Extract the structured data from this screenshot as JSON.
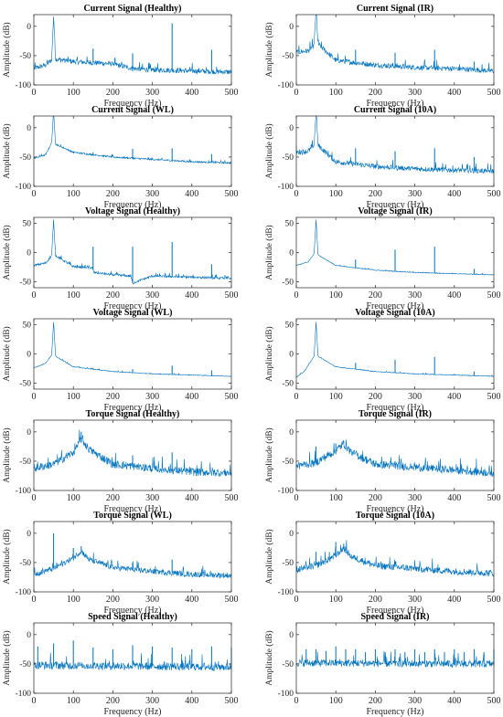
{
  "figure": {
    "line_color": "#0072BD",
    "xlabel": "Frequency (Hz)",
    "ylabel": "Amplitude (dB)"
  },
  "chart_data": [
    {
      "type": "line",
      "title": "Current Signal (Healthy)",
      "xlim": [
        0,
        500
      ],
      "ylim": [
        -100,
        20
      ],
      "xticks": [
        0,
        100,
        200,
        300,
        400,
        500
      ],
      "yticks": [
        -100,
        -50,
        0
      ],
      "baseline": [
        [
          0,
          -72
        ],
        [
          30,
          -66
        ],
        [
          45,
          -58
        ],
        [
          50,
          18
        ],
        [
          55,
          -56
        ],
        [
          100,
          -60
        ],
        [
          200,
          -64
        ],
        [
          250,
          -72
        ],
        [
          300,
          -74
        ],
        [
          400,
          -76
        ],
        [
          500,
          -78
        ]
      ],
      "peaks": [
        [
          50,
          18
        ],
        [
          150,
          -38
        ],
        [
          250,
          -46
        ],
        [
          350,
          5
        ],
        [
          450,
          -40
        ]
      ],
      "noise": 9
    },
    {
      "type": "line",
      "title": "Current Signal (IR)",
      "xlim": [
        0,
        500
      ],
      "ylim": [
        -100,
        20
      ],
      "xticks": [
        0,
        100,
        200,
        300,
        400,
        500
      ],
      "yticks": [
        -100,
        -50,
        0
      ],
      "baseline": [
        [
          0,
          -44
        ],
        [
          30,
          -42
        ],
        [
          45,
          -32
        ],
        [
          50,
          32
        ],
        [
          55,
          -30
        ],
        [
          100,
          -58
        ],
        [
          200,
          -66
        ],
        [
          300,
          -70
        ],
        [
          400,
          -72
        ],
        [
          500,
          -76
        ]
      ],
      "peaks": [
        [
          50,
          32
        ],
        [
          150,
          -40
        ],
        [
          250,
          -45
        ],
        [
          350,
          -40
        ],
        [
          450,
          -60
        ]
      ],
      "noise": 9
    },
    {
      "type": "line",
      "title": "Current Signal (WL)",
      "xlim": [
        0,
        500
      ],
      "ylim": [
        -100,
        20
      ],
      "xticks": [
        0,
        100,
        200,
        300,
        400,
        500
      ],
      "yticks": [
        -100,
        -50,
        0
      ],
      "baseline": [
        [
          0,
          -52
        ],
        [
          30,
          -46
        ],
        [
          45,
          -26
        ],
        [
          50,
          28
        ],
        [
          55,
          -28
        ],
        [
          100,
          -42
        ],
        [
          200,
          -50
        ],
        [
          300,
          -54
        ],
        [
          400,
          -58
        ],
        [
          500,
          -60
        ]
      ],
      "peaks": [
        [
          50,
          28
        ],
        [
          150,
          -42
        ],
        [
          250,
          -36
        ],
        [
          350,
          -35
        ],
        [
          450,
          -45
        ]
      ],
      "noise": 3
    },
    {
      "type": "line",
      "title": "Current Signal (10A)",
      "xlim": [
        0,
        500
      ],
      "ylim": [
        -100,
        20
      ],
      "xticks": [
        0,
        100,
        200,
        300,
        400,
        500
      ],
      "yticks": [
        -100,
        -50,
        0
      ],
      "baseline": [
        [
          0,
          -42
        ],
        [
          30,
          -40
        ],
        [
          45,
          -30
        ],
        [
          50,
          32
        ],
        [
          55,
          -30
        ],
        [
          100,
          -58
        ],
        [
          200,
          -66
        ],
        [
          300,
          -70
        ],
        [
          400,
          -72
        ],
        [
          500,
          -74
        ]
      ],
      "peaks": [
        [
          50,
          32
        ],
        [
          150,
          -35
        ],
        [
          250,
          -40
        ],
        [
          350,
          -35
        ],
        [
          450,
          -50
        ]
      ],
      "noise": 9
    },
    {
      "type": "line",
      "title": "Voltage Signal (Healthy)",
      "xlim": [
        0,
        500
      ],
      "ylim": [
        -60,
        60
      ],
      "xticks": [
        0,
        100,
        200,
        300,
        400,
        500
      ],
      "yticks": [
        -50,
        0,
        50
      ],
      "baseline": [
        [
          0,
          -22
        ],
        [
          30,
          -18
        ],
        [
          45,
          -5
        ],
        [
          50,
          55
        ],
        [
          55,
          -5
        ],
        [
          100,
          -24
        ],
        [
          148,
          -26
        ],
        [
          152,
          -34
        ],
        [
          200,
          -38
        ],
        [
          245,
          -40
        ],
        [
          250,
          -52
        ],
        [
          300,
          -40
        ],
        [
          400,
          -42
        ],
        [
          500,
          -44
        ]
      ],
      "peaks": [
        [
          50,
          55
        ],
        [
          150,
          10
        ],
        [
          250,
          10
        ],
        [
          350,
          18
        ],
        [
          450,
          -20
        ]
      ],
      "noise": 4
    },
    {
      "type": "line",
      "title": "Voltage Signal (IR)",
      "xlim": [
        0,
        500
      ],
      "ylim": [
        -60,
        60
      ],
      "xticks": [
        0,
        100,
        200,
        300,
        400,
        500
      ],
      "yticks": [
        -50,
        0,
        50
      ],
      "baseline": [
        [
          0,
          -22
        ],
        [
          30,
          -16
        ],
        [
          45,
          -2
        ],
        [
          50,
          56
        ],
        [
          55,
          -4
        ],
        [
          100,
          -22
        ],
        [
          200,
          -30
        ],
        [
          300,
          -34
        ],
        [
          400,
          -36
        ],
        [
          500,
          -38
        ]
      ],
      "peaks": [
        [
          50,
          56
        ],
        [
          150,
          -12
        ],
        [
          250,
          5
        ],
        [
          350,
          10
        ],
        [
          450,
          -28
        ]
      ],
      "noise": 1.2
    },
    {
      "type": "line",
      "title": "Voltage Signal (WL)",
      "xlim": [
        0,
        500
      ],
      "ylim": [
        -60,
        60
      ],
      "xticks": [
        0,
        100,
        200,
        300,
        400,
        500
      ],
      "yticks": [
        -50,
        0,
        50
      ],
      "baseline": [
        [
          0,
          -24
        ],
        [
          30,
          -16
        ],
        [
          45,
          -2
        ],
        [
          50,
          54
        ],
        [
          55,
          -4
        ],
        [
          100,
          -22
        ],
        [
          200,
          -30
        ],
        [
          300,
          -34
        ],
        [
          400,
          -36
        ],
        [
          500,
          -38
        ]
      ],
      "peaks": [
        [
          50,
          54
        ],
        [
          150,
          -24
        ],
        [
          250,
          -26
        ],
        [
          350,
          -20
        ],
        [
          450,
          -28
        ]
      ],
      "noise": 1.2
    },
    {
      "type": "line",
      "title": "Voltage Signal (10A)",
      "xlim": [
        0,
        500
      ],
      "ylim": [
        -60,
        60
      ],
      "xticks": [
        0,
        100,
        200,
        300,
        400,
        500
      ],
      "yticks": [
        -50,
        0,
        50
      ],
      "baseline": [
        [
          0,
          -40
        ],
        [
          20,
          -30
        ],
        [
          45,
          -4
        ],
        [
          50,
          54
        ],
        [
          55,
          -4
        ],
        [
          100,
          -22
        ],
        [
          200,
          -30
        ],
        [
          300,
          -34
        ],
        [
          400,
          -36
        ],
        [
          500,
          -38
        ]
      ],
      "peaks": [
        [
          50,
          54
        ],
        [
          150,
          -15
        ],
        [
          250,
          -10
        ],
        [
          350,
          -5
        ],
        [
          450,
          -30
        ]
      ],
      "noise": 1.2
    },
    {
      "type": "line",
      "title": "Torque Signal (Healthy)",
      "xlim": [
        0,
        500
      ],
      "ylim": [
        -100,
        20
      ],
      "xticks": [
        0,
        100,
        200,
        300,
        400,
        500
      ],
      "yticks": [
        -100,
        -50,
        0
      ],
      "baseline": [
        [
          0,
          -62
        ],
        [
          50,
          -55
        ],
        [
          100,
          -35
        ],
        [
          120,
          -12
        ],
        [
          140,
          -30
        ],
        [
          200,
          -55
        ],
        [
          300,
          -62
        ],
        [
          400,
          -68
        ],
        [
          500,
          -70
        ]
      ],
      "peaks": [
        [
          120,
          0
        ],
        [
          250,
          -40
        ],
        [
          350,
          -35
        ]
      ],
      "noise": 14
    },
    {
      "type": "line",
      "title": "Torque Signal (IR)",
      "xlim": [
        0,
        500
      ],
      "ylim": [
        -100,
        20
      ],
      "xticks": [
        0,
        100,
        200,
        300,
        400,
        500
      ],
      "yticks": [
        -100,
        -50,
        0
      ],
      "baseline": [
        [
          0,
          -58
        ],
        [
          50,
          -52
        ],
        [
          100,
          -32
        ],
        [
          120,
          -20
        ],
        [
          140,
          -35
        ],
        [
          200,
          -55
        ],
        [
          300,
          -60
        ],
        [
          400,
          -65
        ],
        [
          500,
          -70
        ]
      ],
      "peaks": [
        [
          50,
          -25
        ],
        [
          100,
          -20
        ],
        [
          120,
          -15
        ],
        [
          250,
          -50
        ]
      ],
      "noise": 14
    },
    {
      "type": "line",
      "title": "Torque Signal (WL)",
      "xlim": [
        0,
        500
      ],
      "ylim": [
        -100,
        20
      ],
      "xticks": [
        0,
        100,
        200,
        300,
        400,
        500
      ],
      "yticks": [
        -100,
        -50,
        0
      ],
      "baseline": [
        [
          0,
          -70
        ],
        [
          50,
          -60
        ],
        [
          100,
          -42
        ],
        [
          120,
          -30
        ],
        [
          140,
          -45
        ],
        [
          200,
          -58
        ],
        [
          300,
          -65
        ],
        [
          400,
          -70
        ],
        [
          500,
          -72
        ]
      ],
      "peaks": [
        [
          50,
          0
        ],
        [
          100,
          -25
        ],
        [
          120,
          -22
        ],
        [
          150,
          -45
        ],
        [
          250,
          -50
        ],
        [
          350,
          -45
        ]
      ],
      "noise": 10
    },
    {
      "type": "line",
      "title": "Torque Signal (10A)",
      "xlim": [
        0,
        500
      ],
      "ylim": [
        -100,
        20
      ],
      "xticks": [
        0,
        100,
        200,
        300,
        400,
        500
      ],
      "yticks": [
        -100,
        -50,
        0
      ],
      "baseline": [
        [
          0,
          -62
        ],
        [
          50,
          -55
        ],
        [
          100,
          -38
        ],
        [
          120,
          -25
        ],
        [
          140,
          -40
        ],
        [
          200,
          -55
        ],
        [
          300,
          -60
        ],
        [
          400,
          -65
        ],
        [
          500,
          -68
        ]
      ],
      "peaks": [
        [
          50,
          -32
        ],
        [
          100,
          -15
        ],
        [
          120,
          -18
        ],
        [
          150,
          -45
        ],
        [
          250,
          -48
        ]
      ],
      "noise": 12
    },
    {
      "type": "line",
      "title": "Speed Signal (Healthy)",
      "xlim": [
        0,
        500
      ],
      "ylim": [
        -100,
        20
      ],
      "xticks": [
        0,
        100,
        200,
        300,
        400,
        500
      ],
      "yticks": [
        -100,
        -50,
        0
      ],
      "baseline": [
        [
          0,
          -52
        ],
        [
          500,
          -55
        ]
      ],
      "peaks": [
        [
          10,
          -20
        ],
        [
          50,
          -15
        ],
        [
          100,
          -10
        ],
        [
          150,
          -22
        ],
        [
          200,
          -25
        ],
        [
          250,
          -18
        ],
        [
          300,
          -20
        ],
        [
          350,
          -22
        ],
        [
          400,
          -25
        ],
        [
          450,
          -20
        ],
        [
          500,
          -22
        ]
      ],
      "noise": 14
    },
    {
      "type": "line",
      "title": "Speed Signal (IR)",
      "xlim": [
        0,
        500
      ],
      "ylim": [
        -100,
        20
      ],
      "xticks": [
        0,
        100,
        200,
        300,
        400,
        500
      ],
      "yticks": [
        -100,
        -50,
        0
      ],
      "baseline": [
        [
          0,
          -48
        ],
        [
          500,
          -50
        ]
      ],
      "peaks": [
        [
          25,
          -25
        ],
        [
          50,
          -25
        ],
        [
          75,
          -28
        ],
        [
          100,
          -20
        ],
        [
          125,
          -25
        ],
        [
          150,
          -25
        ],
        [
          175,
          -30
        ],
        [
          200,
          -25
        ],
        [
          225,
          -30
        ],
        [
          250,
          -25
        ],
        [
          275,
          -30
        ],
        [
          300,
          -25
        ],
        [
          325,
          -30
        ],
        [
          350,
          -25
        ],
        [
          375,
          -30
        ],
        [
          400,
          -25
        ],
        [
          425,
          -30
        ],
        [
          450,
          -25
        ],
        [
          475,
          -30
        ],
        [
          500,
          -25
        ]
      ],
      "noise": 13
    }
  ]
}
